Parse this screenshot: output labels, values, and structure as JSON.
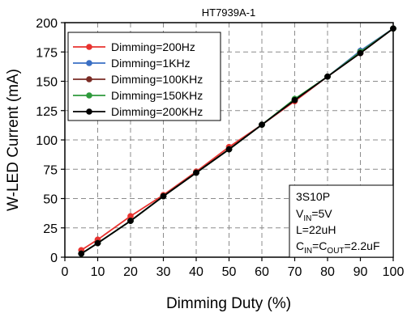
{
  "chart_data": {
    "type": "line",
    "title": "HT7939A-1",
    "xlabel": "Dimming Duty (%)",
    "ylabel": "W-LED Current (mA)",
    "xlim": [
      0,
      100
    ],
    "ylim": [
      0,
      200
    ],
    "xticks": [
      "0",
      "10",
      "20",
      "30",
      "40",
      "50",
      "60",
      "70",
      "80",
      "90",
      "100"
    ],
    "yticks": [
      "0",
      "25",
      "50",
      "75",
      "100",
      "125",
      "150",
      "175",
      "200"
    ],
    "grid": true,
    "legend_position": "top-left",
    "x": [
      5,
      10,
      20,
      30,
      40,
      50,
      60,
      70,
      80,
      90,
      100
    ],
    "series": [
      {
        "name": "Dimming=200Hz",
        "color": "#e8322f",
        "values": [
          6,
          15,
          35,
          53,
          73,
          94,
          113,
          133,
          154,
          174,
          195
        ]
      },
      {
        "name": "Dimming=1KHz",
        "color": "#3a6fc4",
        "values": [
          3,
          12,
          31,
          52,
          72,
          92,
          113,
          134,
          154,
          176,
          195
        ]
      },
      {
        "name": "Dimming=100KHz",
        "color": "#7a2b24",
        "values": [
          3,
          12,
          31,
          52,
          72,
          92,
          113,
          134,
          154,
          175,
          195
        ]
      },
      {
        "name": "Dimming=150KHz",
        "color": "#2e9a3b",
        "values": [
          3,
          12,
          31,
          52,
          72,
          92,
          113,
          135,
          154,
          175,
          195
        ]
      },
      {
        "name": "Dimming=200KHz",
        "color": "#000000",
        "values": [
          3,
          12,
          31,
          52,
          72,
          92,
          113,
          134,
          154,
          174,
          195
        ]
      }
    ],
    "annotation": {
      "line1": "3S10P",
      "line2_main": "V",
      "line2_sub": "IN",
      "line2_rest": "=5V",
      "line3": "L=22uH",
      "line4_c1": "C",
      "line4_sub1": "IN",
      "line4_mid": "=C",
      "line4_sub2": "OUT",
      "line4_rest": "=2.2uF"
    }
  }
}
